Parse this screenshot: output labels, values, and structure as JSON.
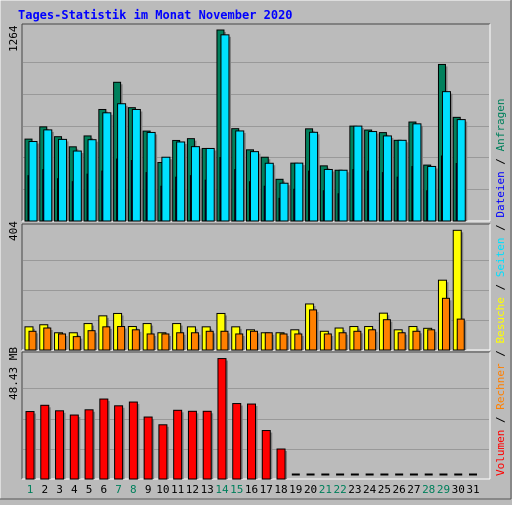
{
  "chart_data": {
    "type": "bar",
    "title": "Tages-Statistik im Monat November 2020",
    "colors": {
      "background": "#bbbbbb",
      "title": "#0000ff",
      "hits": "#00805c",
      "files": "#0000ff",
      "pages": "#00e0ff",
      "visits": "#ffff00",
      "sites": "#ff8000",
      "kbytes": "#ff0000",
      "weekend_day": "#00805c"
    },
    "categories": [
      "1",
      "2",
      "3",
      "4",
      "5",
      "6",
      "7",
      "8",
      "9",
      "10",
      "11",
      "12",
      "13",
      "14",
      "15",
      "16",
      "17",
      "18",
      "19",
      "20",
      "21",
      "22",
      "23",
      "24",
      "25",
      "26",
      "27",
      "28",
      "29",
      "30",
      "31"
    ],
    "weekend_days": [
      1,
      7,
      8,
      14,
      15,
      21,
      22,
      28,
      29
    ],
    "legend": {
      "hits": "Anfragen",
      "files": "Dateien",
      "pages": "Seiten",
      "visits": "Besuche",
      "sites": "Rechner",
      "kbytes": "Volumen",
      "separator": " / "
    },
    "panels": [
      {
        "id": "requests",
        "max_label": "1264",
        "ymax": 1264,
        "series": [
          {
            "key": "hits",
            "values": [
              542,
              623,
              558,
              491,
              563,
              738,
              918,
              750,
              595,
              387,
              533,
              545,
              480,
              1264,
              611,
              471,
              422,
              276,
              383,
              610,
              365,
              336,
              628,
              602,
              585,
              534,
              655,
              370,
              1036,
              686,
              0
            ]
          },
          {
            "key": "files",
            "values": [
              300,
              340,
              280,
              260,
              310,
              330,
              410,
              400,
              320,
              230,
              290,
              300,
              270,
              420,
              340,
              260,
              230,
              150,
              210,
              330,
              200,
              180,
              340,
              330,
              320,
              290,
              360,
              200,
              430,
              380,
              0
            ]
          },
          {
            "key": "pages",
            "values": [
              526,
              603,
              540,
              463,
              538,
              716,
              776,
              738,
              586,
              422,
              523,
              492,
              480,
              1232,
              596,
              459,
              382,
              250,
              383,
              587,
              341,
              336,
              628,
              592,
              563,
              534,
              643,
              361,
              856,
              671,
              0
            ]
          }
        ]
      },
      {
        "id": "visits",
        "max_label": "404",
        "ymax": 404,
        "series": [
          {
            "key": "visits",
            "values": [
              78,
              85,
              58,
              58,
              89,
              115,
              123,
              79,
              89,
              58,
              89,
              78,
              78,
              123,
              78,
              68,
              58,
              58,
              68,
              155,
              63,
              74,
              79,
              79,
              124,
              68,
              79,
              73,
              235,
              403,
              0
            ]
          },
          {
            "key": "sites",
            "values": [
              63,
              74,
              54,
              45,
              65,
              78,
              79,
              68,
              54,
              54,
              58,
              58,
              63,
              63,
              54,
              63,
              58,
              54,
              54,
              135,
              54,
              58,
              63,
              68,
              102,
              58,
              63,
              68,
              174,
              104,
              0
            ]
          }
        ]
      },
      {
        "id": "volume",
        "max_label": "48.43 MB",
        "ymax": 48.43,
        "series": [
          {
            "key": "kbytes",
            "values": [
              27.0,
              29.5,
              27.3,
              25.6,
              27.7,
              32.0,
              29.3,
              30.8,
              24.8,
              21.7,
              27.5,
              27.1,
              27.1,
              48.2,
              30.2,
              30.0,
              19.4,
              12.0,
              0,
              0,
              0,
              0,
              0,
              0,
              0,
              0,
              0,
              0,
              0,
              0,
              0
            ]
          }
        ]
      }
    ]
  }
}
